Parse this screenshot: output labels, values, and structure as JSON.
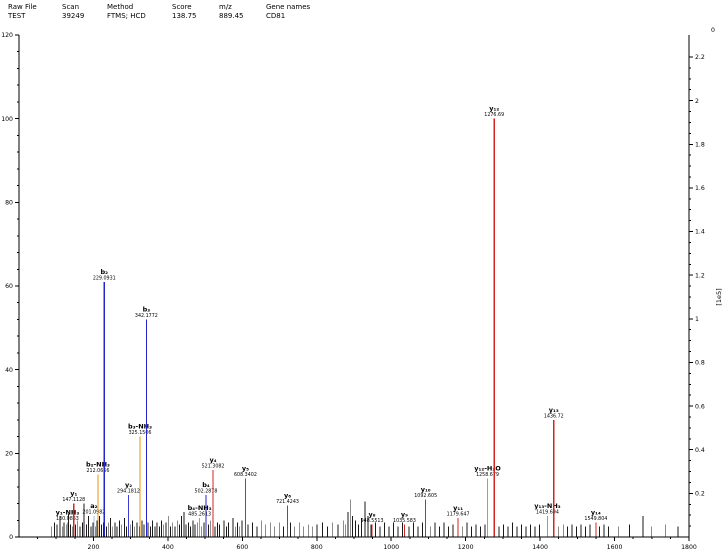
{
  "header": {
    "fields": [
      {
        "label": "Raw File",
        "value": "TEST"
      },
      {
        "label": "Scan",
        "value": "39249"
      },
      {
        "label": "Method",
        "value": "FTMS; HCD"
      },
      {
        "label": "Score",
        "value": "138.75"
      },
      {
        "label": "m/z",
        "value": "889.45"
      },
      {
        "label": "Gene names",
        "value": "CD81"
      }
    ]
  },
  "chart_data": {
    "type": "bar",
    "subtype": "ms2-fragment-spectrum",
    "title": "",
    "xlabel": "",
    "ylabel": "",
    "right_axis_unit": "[1e5]",
    "right_axis_top_label": "0",
    "xlim": [
      0,
      1800
    ],
    "left_ylim": [
      0,
      120
    ],
    "x_ticks": [
      200,
      400,
      600,
      800,
      1000,
      1200,
      1400,
      1600,
      1800
    ],
    "left_y_ticks": [
      0,
      20,
      40,
      60,
      80,
      100,
      120
    ],
    "right_y_ticks": [
      "0.2",
      "0.4",
      "0.6",
      "0.8",
      "1",
      "1.2",
      "1.4",
      "1.6",
      "1.8",
      "2",
      "2.2"
    ],
    "grid": false,
    "legend": "none",
    "colors": {
      "y": "#d42525",
      "b": "#2525cc",
      "loss": "#e8940a",
      "a": "#a9c2dd"
    },
    "annotated_peaks": [
      {
        "ion": "y1-NH3",
        "display": "y₁-NH₃",
        "mz": 130.0863,
        "mz_label": "130.0863",
        "intensity_pct": 3.5,
        "type": "loss"
      },
      {
        "ion": "y1",
        "display": "y₁",
        "mz": 147.1128,
        "mz_label": "147.1128",
        "intensity_pct": 8,
        "type": "y"
      },
      {
        "ion": "a2",
        "display": "a₂",
        "mz": 201.0982,
        "mz_label": "201.0982",
        "intensity_pct": 5,
        "type": "a"
      },
      {
        "ion": "b2-NH3",
        "display": "b₂-NH₃",
        "mz": 212.0666,
        "mz_label": "212.0666",
        "intensity_pct": 15,
        "type": "loss"
      },
      {
        "ion": "b2",
        "display": "b₂",
        "mz": 229.0931,
        "mz_label": "229.0931",
        "intensity_pct": 61,
        "type": "b"
      },
      {
        "ion": "y2",
        "display": "y₂",
        "mz": 294.1812,
        "mz_label": "294.1812",
        "intensity_pct": 10,
        "type": "y",
        "color": "#3a3ad4"
      },
      {
        "ion": "b3-NH3",
        "display": "b₃-NH₃",
        "mz": 325.1506,
        "mz_label": "325.1506",
        "intensity_pct": 24,
        "type": "loss"
      },
      {
        "ion": "b3",
        "display": "b₃",
        "mz": 342.1772,
        "mz_label": "342.1772",
        "intensity_pct": 52,
        "type": "b"
      },
      {
        "ion": "b4-NH3",
        "display": "b₄-NH₃",
        "mz": 485.2613,
        "mz_label": "485.2613",
        "intensity_pct": 4.5,
        "type": "loss"
      },
      {
        "ion": "b4",
        "display": "b₄",
        "mz": 502.2878,
        "mz_label": "502.2878",
        "intensity_pct": 10,
        "type": "b"
      },
      {
        "ion": "y4",
        "display": "y₄",
        "mz": 521.3082,
        "mz_label": "521.3082",
        "intensity_pct": 16,
        "type": "y"
      },
      {
        "ion": "y5",
        "display": "y₅",
        "mz": 608.3402,
        "mz_label": "608.3402",
        "intensity_pct": 14,
        "type": "y"
      },
      {
        "ion": "y6",
        "display": "y₆",
        "mz": 721.4243,
        "mz_label": "721.4243",
        "intensity_pct": 7.5,
        "type": "y"
      },
      {
        "ion": "y8",
        "display": "y₈",
        "mz": 948.5513,
        "mz_label": "948.5513",
        "intensity_pct": 3,
        "type": "y"
      },
      {
        "ion": "y9",
        "display": "y₉",
        "mz": 1035.583,
        "mz_label": "1035.583",
        "intensity_pct": 3,
        "type": "y"
      },
      {
        "ion": "y10",
        "display": "y₁₀",
        "mz": 1092.605,
        "mz_label": "1092.605",
        "intensity_pct": 9,
        "type": "y"
      },
      {
        "ion": "y11",
        "display": "y₁₁",
        "mz": 1179.647,
        "mz_label": "1179.647",
        "intensity_pct": 4.5,
        "type": "y"
      },
      {
        "ion": "y12-H2O",
        "display": "y₁₂-H₂O",
        "mz": 1258.679,
        "mz_label": "1258.679",
        "intensity_pct": 14,
        "type": "loss"
      },
      {
        "ion": "y12",
        "display": "y₁₂",
        "mz": 1276.69,
        "mz_label": "1276.69",
        "intensity_pct": 100,
        "type": "y"
      },
      {
        "ion": "y13-NH3",
        "display": "y₁₃-NH₃",
        "mz": 1419.694,
        "mz_label": "1419.694",
        "intensity_pct": 5,
        "type": "loss"
      },
      {
        "ion": "y13",
        "display": "y₁₃",
        "mz": 1436.72,
        "mz_label": "1436.72",
        "intensity_pct": 28,
        "type": "y"
      },
      {
        "ion": "y14",
        "display": "y₁₄",
        "mz": 1549.804,
        "mz_label": "1549.804",
        "intensity_pct": 3.5,
        "type": "y"
      }
    ],
    "background_peaks": [
      [
        88,
        2.5
      ],
      [
        95,
        3.5
      ],
      [
        102,
        3
      ],
      [
        110,
        5
      ],
      [
        116,
        2.5
      ],
      [
        121,
        3.5
      ],
      [
        127,
        3
      ],
      [
        133,
        5.5
      ],
      [
        138,
        3
      ],
      [
        145,
        2.5
      ],
      [
        152,
        3
      ],
      [
        158,
        4
      ],
      [
        164,
        2.5
      ],
      [
        171,
        3.5
      ],
      [
        175,
        8
      ],
      [
        181,
        3
      ],
      [
        187,
        5
      ],
      [
        193,
        2.5
      ],
      [
        199,
        3.5
      ],
      [
        205,
        2.5
      ],
      [
        210,
        4
      ],
      [
        216,
        5
      ],
      [
        222,
        3
      ],
      [
        227,
        3.5
      ],
      [
        235,
        2.5
      ],
      [
        241,
        3.5
      ],
      [
        246,
        4.5
      ],
      [
        252,
        2.5
      ],
      [
        258,
        3.5
      ],
      [
        263,
        2.5
      ],
      [
        270,
        4
      ],
      [
        276,
        3
      ],
      [
        283,
        4.5
      ],
      [
        289,
        2.5
      ],
      [
        299,
        3
      ],
      [
        305,
        4
      ],
      [
        311,
        2.5
      ],
      [
        317,
        3.5
      ],
      [
        323,
        2.5
      ],
      [
        330,
        4
      ],
      [
        336,
        3
      ],
      [
        347,
        3.5
      ],
      [
        353,
        2.5
      ],
      [
        359,
        4
      ],
      [
        365,
        2.5
      ],
      [
        371,
        3.5
      ],
      [
        377,
        2.5
      ],
      [
        383,
        4
      ],
      [
        389,
        3
      ],
      [
        395,
        3.5
      ],
      [
        401,
        5
      ],
      [
        407,
        2.5
      ],
      [
        413,
        3.5
      ],
      [
        419,
        2.5
      ],
      [
        425,
        4
      ],
      [
        431,
        3
      ],
      [
        437,
        5
      ],
      [
        443,
        6
      ],
      [
        449,
        3
      ],
      [
        455,
        3.5
      ],
      [
        461,
        2.5
      ],
      [
        467,
        4
      ],
      [
        473,
        3
      ],
      [
        479,
        3.5
      ],
      [
        491,
        2.5
      ],
      [
        497,
        3.5
      ],
      [
        509,
        3
      ],
      [
        515,
        4
      ],
      [
        527,
        2.5
      ],
      [
        533,
        3.5
      ],
      [
        539,
        3
      ],
      [
        551,
        4
      ],
      [
        557,
        2.5
      ],
      [
        563,
        3.5
      ],
      [
        575,
        4.5
      ],
      [
        581,
        2.5
      ],
      [
        587,
        3.5
      ],
      [
        593,
        2.5
      ],
      [
        599,
        4
      ],
      [
        615,
        3
      ],
      [
        627,
        3.5
      ],
      [
        639,
        2.5
      ],
      [
        651,
        4
      ],
      [
        663,
        3
      ],
      [
        675,
        3.5
      ],
      [
        687,
        2.5
      ],
      [
        699,
        3.5
      ],
      [
        711,
        2.5
      ],
      [
        729,
        3.5
      ],
      [
        741,
        2.5
      ],
      [
        753,
        3.5
      ],
      [
        765,
        2.5
      ],
      [
        777,
        3
      ],
      [
        789,
        2.5
      ],
      [
        801,
        3
      ],
      [
        815,
        3.5
      ],
      [
        829,
        2.5
      ],
      [
        843,
        3.5
      ],
      [
        857,
        3
      ],
      [
        871,
        4
      ],
      [
        878,
        3
      ],
      [
        884,
        6
      ],
      [
        890,
        9
      ],
      [
        896,
        5
      ],
      [
        904,
        4
      ],
      [
        912,
        3
      ],
      [
        920,
        4.5
      ],
      [
        930,
        8.5
      ],
      [
        938,
        5
      ],
      [
        946,
        3
      ],
      [
        958,
        3.5
      ],
      [
        970,
        2.5
      ],
      [
        982,
        3.5
      ],
      [
        994,
        2.5
      ],
      [
        1006,
        3.5
      ],
      [
        1018,
        2.5
      ],
      [
        1030,
        3.5
      ],
      [
        1048,
        2.5
      ],
      [
        1060,
        3.5
      ],
      [
        1072,
        2.5
      ],
      [
        1084,
        3.5
      ],
      [
        1106,
        2.5
      ],
      [
        1118,
        3.5
      ],
      [
        1130,
        2.5
      ],
      [
        1142,
        3.5
      ],
      [
        1154,
        2.5
      ],
      [
        1166,
        3
      ],
      [
        1192,
        2.5
      ],
      [
        1204,
        3.5
      ],
      [
        1216,
        2.5
      ],
      [
        1228,
        3
      ],
      [
        1240,
        2.5
      ],
      [
        1252,
        3
      ],
      [
        1290,
        2.5
      ],
      [
        1302,
        3
      ],
      [
        1314,
        2.5
      ],
      [
        1326,
        3.5
      ],
      [
        1338,
        2.5
      ],
      [
        1350,
        3
      ],
      [
        1362,
        2.5
      ],
      [
        1374,
        3
      ],
      [
        1386,
        2.5
      ],
      [
        1398,
        3
      ],
      [
        1450,
        2.5
      ],
      [
        1462,
        3
      ],
      [
        1474,
        2.5
      ],
      [
        1486,
        3
      ],
      [
        1498,
        2.5
      ],
      [
        1510,
        3
      ],
      [
        1522,
        2.5
      ],
      [
        1534,
        3
      ],
      [
        1560,
        2.5
      ],
      [
        1572,
        3
      ],
      [
        1584,
        2.5
      ],
      [
        1610,
        2.5
      ],
      [
        1640,
        3
      ],
      [
        1676,
        5
      ],
      [
        1700,
        2.5
      ],
      [
        1736,
        3
      ],
      [
        1770,
        2.5
      ]
    ]
  }
}
